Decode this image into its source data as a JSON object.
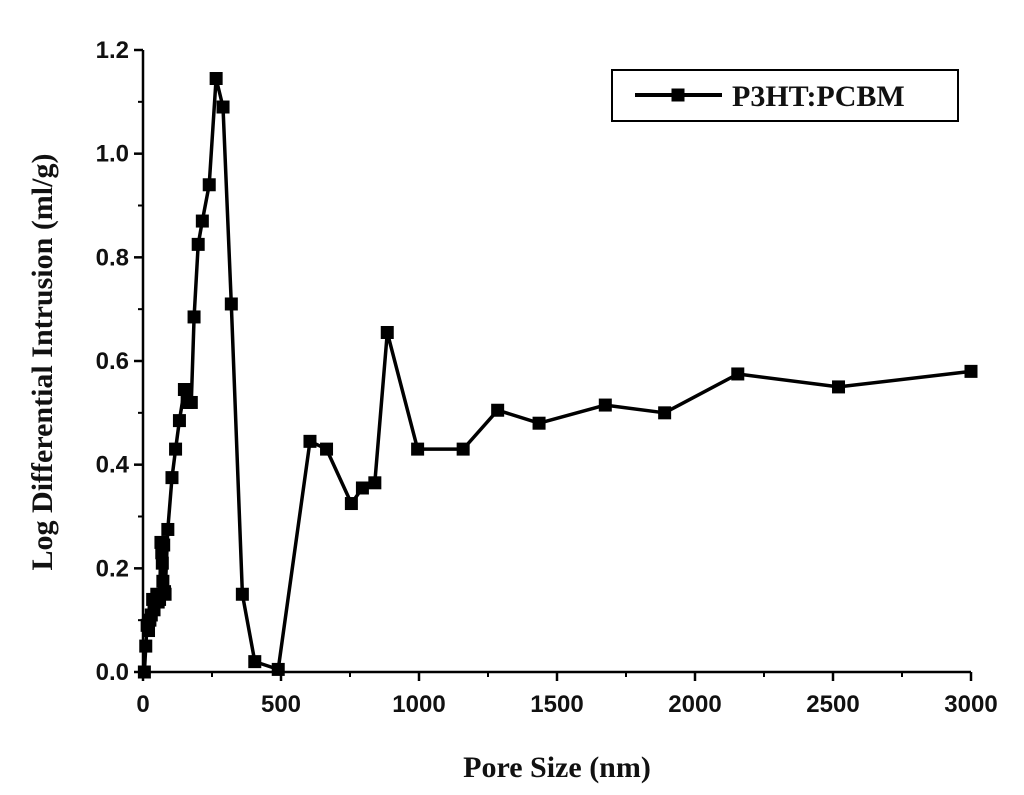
{
  "chart_data": {
    "type": "line",
    "title": "",
    "xlabel": "Pore Size (nm)",
    "ylabel": "Log Differential Intrusion (ml/g)",
    "xlim": [
      0,
      3000
    ],
    "ylim": [
      0,
      1.2
    ],
    "xticks": [
      0,
      500,
      1000,
      1500,
      2000,
      2500,
      3000
    ],
    "yticks": [
      0.0,
      0.2,
      0.4,
      0.6,
      0.8,
      1.0,
      1.2
    ],
    "xtick_labels": [
      "0",
      "500",
      "1000",
      "1500",
      "2000",
      "2500",
      "3000"
    ],
    "ytick_labels": [
      "0.0",
      "0.2",
      "0.4",
      "0.6",
      "0.8",
      "1.0",
      "1.2"
    ],
    "grid": false,
    "legend": {
      "position": "top-right"
    },
    "series": [
      {
        "name": "P3HT:PCBM",
        "color": "#000000",
        "marker": "square",
        "x": [
          5,
          10,
          15,
          20,
          25,
          30,
          35,
          40,
          50,
          55,
          60,
          65,
          68,
          70,
          72,
          75,
          78,
          80,
          90,
          105,
          118,
          132,
          150,
          160,
          175,
          185,
          200,
          215,
          240,
          265,
          290,
          320,
          360,
          405,
          490,
          605,
          665,
          755,
          795,
          840,
          885,
          995,
          1160,
          1285,
          1435,
          1675,
          1890,
          2155,
          2520,
          3000
        ],
        "y": [
          0.0,
          0.05,
          0.09,
          0.08,
          0.1,
          0.11,
          0.14,
          0.12,
          0.15,
          0.135,
          0.14,
          0.25,
          0.23,
          0.21,
          0.175,
          0.245,
          0.155,
          0.15,
          0.275,
          0.375,
          0.43,
          0.485,
          0.545,
          0.52,
          0.52,
          0.685,
          0.825,
          0.87,
          0.94,
          1.145,
          1.09,
          0.71,
          0.15,
          0.02,
          0.005,
          0.445,
          0.43,
          0.325,
          0.355,
          0.365,
          0.655,
          0.43,
          0.43,
          0.505,
          0.48,
          0.515,
          0.5,
          0.575,
          0.55,
          0.58
        ]
      }
    ]
  }
}
